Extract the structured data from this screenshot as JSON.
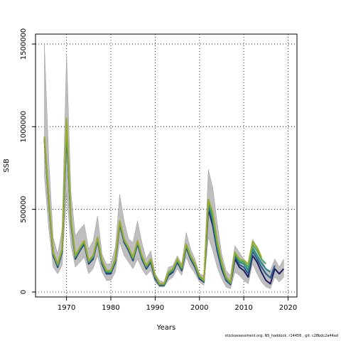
{
  "chart_data": {
    "type": "line",
    "xlabel": "Years",
    "ylabel": "SSB",
    "xlim": [
      1963,
      2022
    ],
    "ylim": [
      -30000,
      1560000
    ],
    "xticks": [
      1970,
      1980,
      1990,
      2000,
      2010,
      2020
    ],
    "yticks": [
      0,
      500000,
      1000000,
      1500000
    ],
    "grid": true,
    "band": {
      "x": [
        1965,
        1966,
        1967,
        1968,
        1969,
        1970,
        1971,
        1972,
        1973,
        1974,
        1975,
        1976,
        1977,
        1978,
        1979,
        1980,
        1981,
        1982,
        1983,
        1984,
        1985,
        1986,
        1987,
        1988,
        1989,
        1990,
        1991,
        1992,
        1993,
        1994,
        1995,
        1996,
        1997,
        1998,
        1999,
        2000,
        2001,
        2002,
        2003,
        2004,
        2005,
        2006,
        2007,
        2008,
        2009,
        2010,
        2011,
        2012,
        2013,
        2014,
        2015,
        2016,
        2017,
        2018,
        2019
      ],
      "lower": [
        700000,
        380000,
        150000,
        110000,
        160000,
        600000,
        280000,
        150000,
        180000,
        210000,
        110000,
        140000,
        220000,
        120000,
        70000,
        70000,
        120000,
        300000,
        220000,
        180000,
        140000,
        200000,
        140000,
        100000,
        130000,
        60000,
        30000,
        30000,
        70000,
        90000,
        140000,
        100000,
        210000,
        150000,
        110000,
        60000,
        40000,
        330000,
        250000,
        150000,
        80000,
        30000,
        20000,
        120000,
        100000,
        70000,
        50000,
        170000,
        110000,
        60000,
        30000,
        20000,
        90000,
        60000,
        90000
      ],
      "upper": [
        1500000,
        800000,
        330000,
        230000,
        380000,
        1440000,
        600000,
        340000,
        380000,
        410000,
        260000,
        310000,
        460000,
        230000,
        170000,
        170000,
        270000,
        590000,
        430000,
        320000,
        300000,
        430000,
        300000,
        200000,
        250000,
        110000,
        70000,
        60000,
        150000,
        160000,
        220000,
        170000,
        360000,
        260000,
        200000,
        110000,
        100000,
        740000,
        630000,
        420000,
        230000,
        130000,
        100000,
        280000,
        240000,
        200000,
        170000,
        320000,
        270000,
        210000,
        140000,
        130000,
        200000,
        150000,
        200000
      ]
    },
    "series": [
      {
        "name": "",
        "color": "#1e1e64",
        "x": [
          1965,
          1966,
          1967,
          1968,
          1969,
          1970,
          1971,
          1972,
          1973,
          1974,
          1975,
          1976,
          1977,
          1978,
          1979,
          1980,
          1981,
          1982,
          1983,
          1984,
          1985,
          1986,
          1987,
          1988,
          1989,
          1990,
          1991,
          1992,
          1993,
          1994,
          1995,
          1996,
          1997,
          1998,
          1999,
          2000,
          2001,
          2002,
          2003,
          2004,
          2005,
          2006,
          2007,
          2008,
          2009,
          2010,
          2011,
          2012,
          2013,
          2014,
          2015,
          2016,
          2017,
          2018,
          2019
        ],
        "values": [
          920000,
          540000,
          220000,
          150000,
          240000,
          960000,
          420000,
          200000,
          250000,
          290000,
          170000,
          200000,
          310000,
          170000,
          110000,
          110000,
          180000,
          410000,
          300000,
          250000,
          190000,
          290000,
          200000,
          140000,
          180000,
          80000,
          40000,
          40000,
          100000,
          120000,
          180000,
          130000,
          270000,
          200000,
          150000,
          80000,
          60000,
          500000,
          400000,
          250000,
          140000,
          70000,
          45000,
          200000,
          150000,
          130000,
          90000,
          220000,
          180000,
          120000,
          70000,
          50000,
          140000,
          110000,
          140000
        ]
      },
      {
        "name": "",
        "color": "#2a5a8a",
        "x": [
          1965,
          1966,
          1967,
          1968,
          1969,
          1970,
          1971,
          1972,
          1973,
          1974,
          1975,
          1976,
          1977,
          1978,
          1979,
          1980,
          1981,
          1982,
          1983,
          1984,
          1985,
          1986,
          1987,
          1988,
          1989,
          1990,
          1991,
          1992,
          1993,
          1994,
          1995,
          1996,
          1997,
          1998,
          1999,
          2000,
          2001,
          2002,
          2003,
          2004,
          2005,
          2006,
          2007,
          2008,
          2009,
          2010,
          2011,
          2012,
          2013,
          2014,
          2015,
          2016,
          2017
        ],
        "values": [
          925000,
          545000,
          225000,
          155000,
          245000,
          970000,
          425000,
          205000,
          255000,
          295000,
          175000,
          205000,
          315000,
          175000,
          115000,
          115000,
          185000,
          415000,
          305000,
          255000,
          195000,
          295000,
          205000,
          145000,
          185000,
          85000,
          42000,
          42000,
          105000,
          125000,
          185000,
          135000,
          275000,
          205000,
          155000,
          85000,
          62000,
          520000,
          420000,
          260000,
          150000,
          75000,
          48000,
          215000,
          165000,
          150000,
          110000,
          245000,
          200000,
          150000,
          110000,
          85000,
          160000
        ]
      },
      {
        "name": "",
        "color": "#2a8a8a",
        "x": [
          1965,
          1966,
          1967,
          1968,
          1969,
          1970,
          1971,
          1972,
          1973,
          1974,
          1975,
          1976,
          1977,
          1978,
          1979,
          1980,
          1981,
          1982,
          1983,
          1984,
          1985,
          1986,
          1987,
          1988,
          1989,
          1990,
          1991,
          1992,
          1993,
          1994,
          1995,
          1996,
          1997,
          1998,
          1999,
          2000,
          2001,
          2002,
          2003,
          2004,
          2005,
          2006,
          2007,
          2008,
          2009,
          2010,
          2011,
          2012,
          2013,
          2014,
          2015,
          2016
        ],
        "values": [
          930000,
          550000,
          230000,
          160000,
          250000,
          990000,
          430000,
          210000,
          260000,
          300000,
          180000,
          210000,
          320000,
          180000,
          120000,
          120000,
          190000,
          420000,
          310000,
          260000,
          200000,
          300000,
          210000,
          150000,
          190000,
          90000,
          45000,
          45000,
          110000,
          130000,
          190000,
          140000,
          280000,
          210000,
          160000,
          90000,
          65000,
          540000,
          440000,
          275000,
          160000,
          80000,
          50000,
          230000,
          180000,
          170000,
          130000,
          265000,
          220000,
          175000,
          140000,
          120000
        ]
      },
      {
        "name": "",
        "color": "#4aaa5a",
        "x": [
          1965,
          1966,
          1967,
          1968,
          1969,
          1970,
          1971,
          1972,
          1973,
          1974,
          1975,
          1976,
          1977,
          1978,
          1979,
          1980,
          1981,
          1982,
          1983,
          1984,
          1985,
          1986,
          1987,
          1988,
          1989,
          1990,
          1991,
          1992,
          1993,
          1994,
          1995,
          1996,
          1997,
          1998,
          1999,
          2000,
          2001,
          2002,
          2003,
          2004,
          2005,
          2006,
          2007,
          2008,
          2009,
          2010,
          2011,
          2012,
          2013,
          2014,
          2015
        ],
        "values": [
          935000,
          555000,
          235000,
          165000,
          255000,
          1010000,
          435000,
          215000,
          265000,
          305000,
          185000,
          215000,
          325000,
          185000,
          125000,
          125000,
          195000,
          425000,
          315000,
          265000,
          205000,
          305000,
          215000,
          155000,
          195000,
          95000,
          47000,
          47000,
          115000,
          135000,
          195000,
          145000,
          285000,
          215000,
          165000,
          95000,
          67000,
          555000,
          460000,
          290000,
          170000,
          85000,
          55000,
          235000,
          190000,
          180000,
          150000,
          285000,
          250000,
          200000,
          170000
        ]
      },
      {
        "name": "",
        "color": "#9aaa2a",
        "x": [
          1965,
          1966,
          1967,
          1968,
          1969,
          1970,
          1971,
          1972,
          1973,
          1974,
          1975,
          1976,
          1977,
          1978,
          1979,
          1980,
          1981,
          1982,
          1983,
          1984,
          1985,
          1986,
          1987,
          1988,
          1989,
          1990,
          1991,
          1992,
          1993,
          1994,
          1995,
          1996,
          1997,
          1998,
          1999,
          2000,
          2001,
          2002,
          2003,
          2004,
          2005,
          2006,
          2007,
          2008,
          2009,
          2010,
          2011,
          2012,
          2013,
          2014
        ],
        "values": [
          940000,
          560000,
          240000,
          170000,
          260000,
          1050000,
          440000,
          220000,
          270000,
          310000,
          190000,
          220000,
          330000,
          190000,
          130000,
          130000,
          200000,
          430000,
          320000,
          270000,
          210000,
          310000,
          220000,
          160000,
          200000,
          100000,
          50000,
          50000,
          120000,
          140000,
          200000,
          150000,
          290000,
          220000,
          170000,
          100000,
          70000,
          560000,
          480000,
          310000,
          180000,
          90000,
          60000,
          240000,
          200000,
          190000,
          170000,
          305000,
          270000,
          210000
        ]
      }
    ]
  },
  "footer_text": "stockassessment.org, NS_haddock, r14456 , git: c28bdc2a44ad"
}
